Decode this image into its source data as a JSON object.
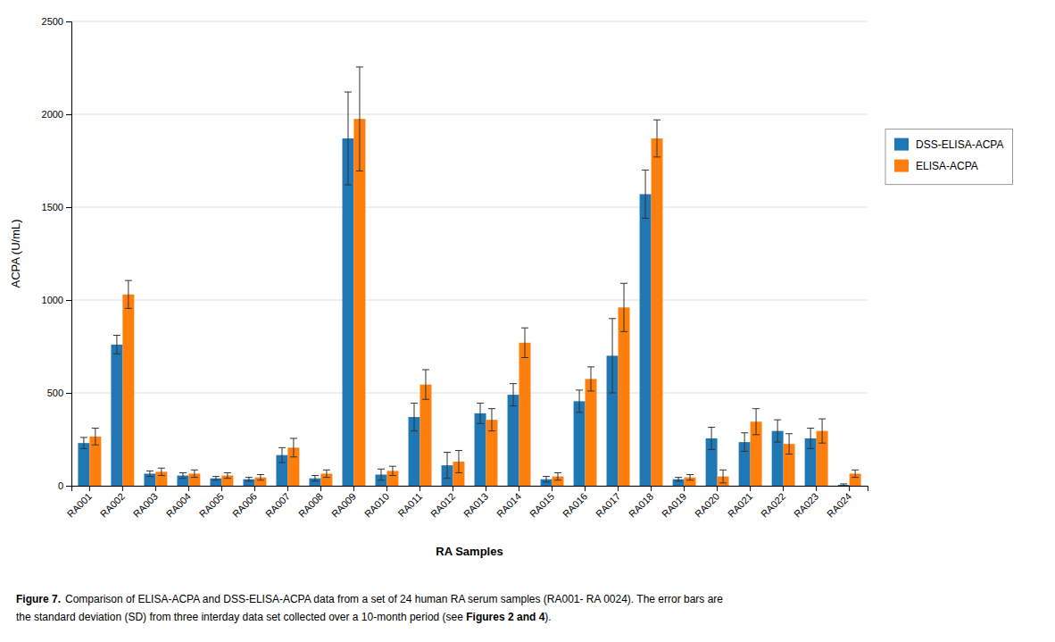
{
  "chart_data": {
    "type": "bar",
    "categories": [
      "RA001",
      "RA002",
      "RA003",
      "RA004",
      "RA005",
      "RA006",
      "RA007",
      "RA008",
      "RA009",
      "RA010",
      "RA011",
      "RA012",
      "RA013",
      "RA014",
      "RA015",
      "RA016",
      "RA017",
      "RA018",
      "RA019",
      "RA020",
      "RA021",
      "RA022",
      "RA023",
      "RA024"
    ],
    "series": [
      {
        "name": "DSS-ELISA-ACPA",
        "values": [
          230,
          760,
          65,
          55,
          40,
          35,
          165,
          40,
          1870,
          60,
          370,
          110,
          390,
          490,
          35,
          455,
          700,
          1570,
          35,
          255,
          235,
          295,
          255,
          5
        ],
        "errors": [
          30,
          50,
          15,
          15,
          10,
          10,
          40,
          15,
          250,
          30,
          75,
          70,
          55,
          60,
          15,
          60,
          200,
          130,
          10,
          60,
          50,
          60,
          55,
          5
        ]
      },
      {
        "name": "ELISA-ACPA",
        "values": [
          265,
          1030,
          75,
          65,
          55,
          45,
          205,
          65,
          1975,
          80,
          545,
          130,
          355,
          770,
          50,
          575,
          960,
          1870,
          45,
          50,
          345,
          225,
          295,
          65
        ],
        "errors": [
          45,
          75,
          20,
          20,
          15,
          15,
          50,
          20,
          280,
          25,
          80,
          60,
          60,
          80,
          20,
          65,
          130,
          100,
          15,
          35,
          70,
          55,
          65,
          20
        ]
      }
    ],
    "x_label": "RA Samples",
    "y_label": "ACPA (U/mL)",
    "ylim": [
      0,
      2500
    ],
    "yticks": [
      0,
      500,
      1000,
      1500,
      2000,
      2500
    ],
    "grid": true,
    "legend": "right",
    "annotations": [
      "Figure 7.",
      "Comparison of ELISA-ACPA and DSS-ELISA-ACPA data from a set of 24 human RA serum samples (RA001- RA 0024). The error bars are",
      "the standard deviation (SD) from three interday data set collected over a 10-month period (see ",
      "Figures 2 and 4",
      ")."
    ]
  }
}
